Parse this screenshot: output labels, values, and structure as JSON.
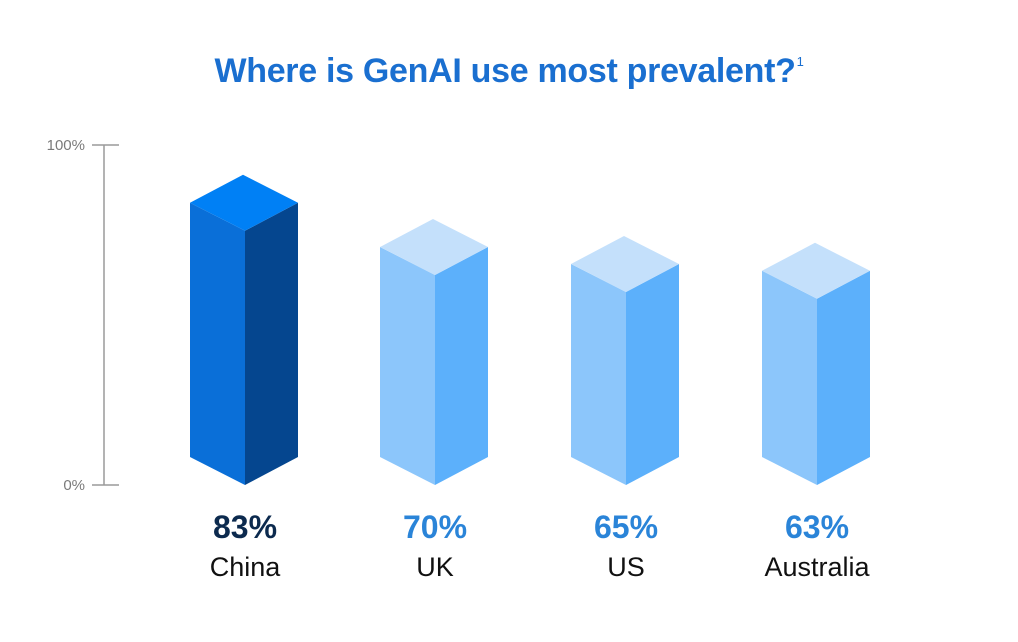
{
  "chart_data": {
    "type": "bar",
    "title": "Where is GenAI use most prevalent?",
    "title_footnote": "1",
    "categories": [
      "China",
      "UK",
      "US",
      "Australia"
    ],
    "values": [
      83,
      70,
      65,
      63
    ],
    "value_labels": [
      "83%",
      "70%",
      "65%",
      "63%"
    ],
    "ylim": [
      0,
      100
    ],
    "y_ticks": [
      {
        "value": 100,
        "label": "100%"
      },
      {
        "value": 0,
        "label": "0%"
      }
    ],
    "grid": false,
    "legend": "none",
    "bar_style": "3d-box",
    "highlight_index": 0,
    "colors": {
      "highlight_front": "#0a6fd8",
      "highlight_side": "#05468f",
      "highlight_top": "#0080f5",
      "normal_front": "#8cc6fb",
      "normal_side": "#5cb0fb",
      "normal_top": "#c4e0fb",
      "highlight_value_text": "#0c2a4e",
      "normal_value_text": "#2a84d8",
      "axis": "#9a9a9a",
      "title": "#1a6fd0"
    }
  }
}
